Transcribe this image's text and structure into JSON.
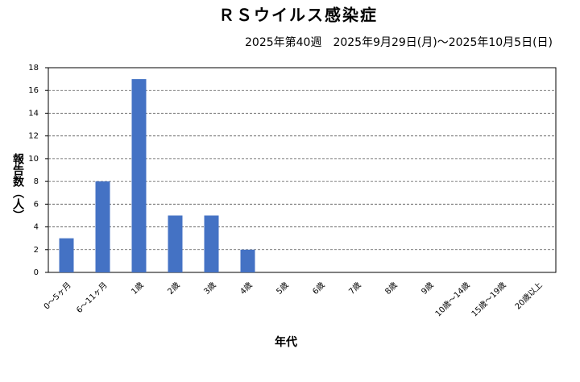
{
  "chart_data": {
    "type": "bar",
    "title": "ＲＳウイルス感染症",
    "subtitle": "2025年第40週　2025年9月29日(月)～2025年10月5日(日)",
    "y_label": "報告数（人）",
    "x_label": "年代",
    "categories": [
      "0～5ヶ月",
      "6～11ヶ月",
      "1歳",
      "2歳",
      "3歳",
      "4歳",
      "5歳",
      "6歳",
      "7歳",
      "8歳",
      "9歳",
      "10歳～14歳",
      "15歳～19歳",
      "20歳以上"
    ],
    "values": [
      3,
      8,
      17,
      5,
      5,
      2,
      0,
      0,
      0,
      0,
      0,
      0,
      0,
      0
    ],
    "color": "#4472c4",
    "ylim": [
      0,
      18
    ],
    "yticks": [
      0,
      2,
      4,
      6,
      8,
      10,
      12,
      14,
      16,
      18
    ],
    "grid": true
  }
}
